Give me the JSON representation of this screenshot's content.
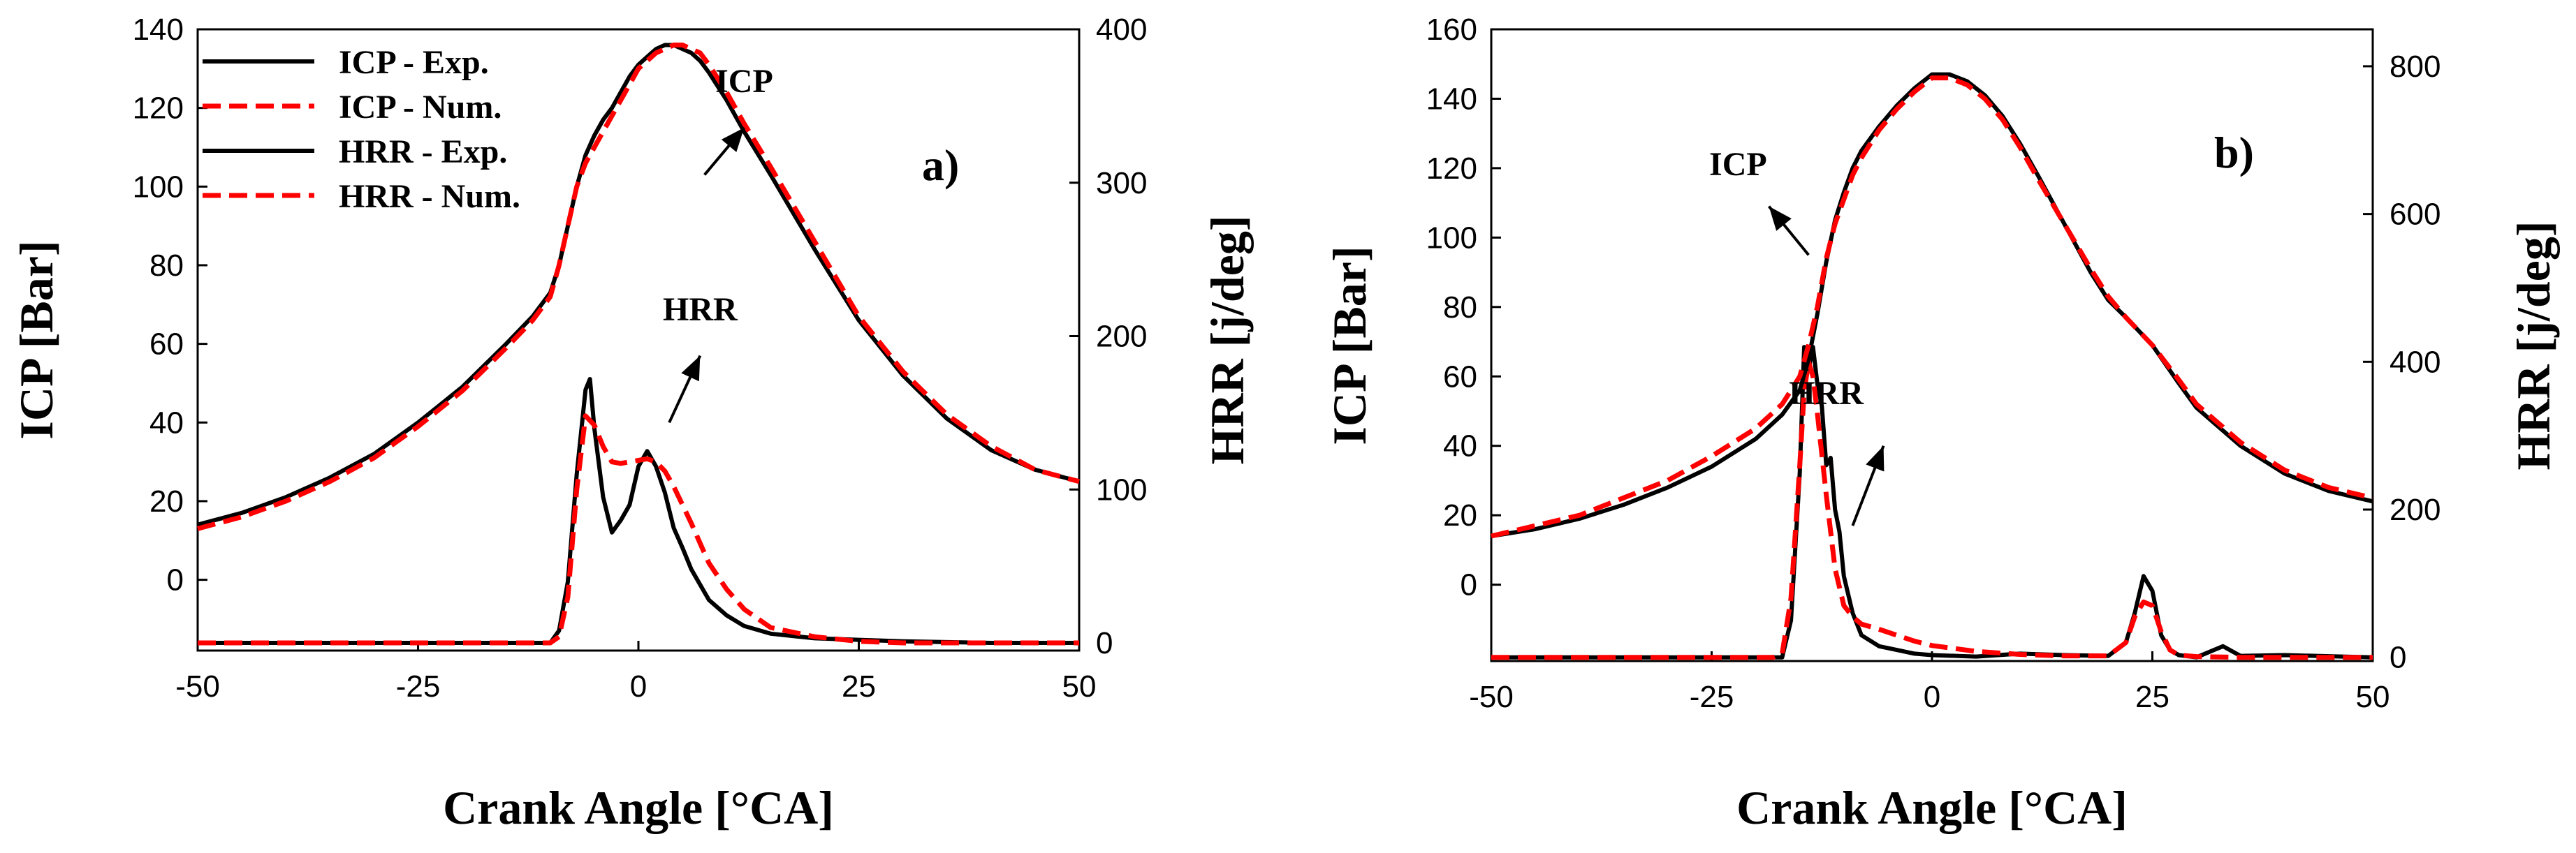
{
  "chart_data": [
    {
      "type": "line",
      "panel_label": "a)",
      "xlabel": "Crank Angle [°CA]",
      "ylabel_left": "ICP [Bar]",
      "ylabel_right": "HRR [j/deg]",
      "xlim": [
        -50,
        50
      ],
      "ylim_left": [
        -18,
        140
      ],
      "ylim_right": [
        -5,
        400
      ],
      "xticks": [
        -50,
        -25,
        0,
        25,
        50
      ],
      "yticks_left": [
        0,
        20,
        40,
        60,
        80,
        100,
        120,
        140
      ],
      "yticks_right": [
        0,
        100,
        200,
        300,
        400
      ],
      "grid": false,
      "legend": {
        "position": "top-left",
        "entries": [
          {
            "label": "ICP - Exp.",
            "color": "#000000",
            "style": "solid"
          },
          {
            "label": "ICP - Num.",
            "color": "#ff0000",
            "style": "dashed"
          },
          {
            "label": "HRR - Exp.",
            "color": "#000000",
            "style": "solid"
          },
          {
            "label": "HRR - Num.",
            "color": "#ff0000",
            "style": "dashed"
          }
        ]
      },
      "annotations": [
        {
          "text": "ICP",
          "x": 12,
          "y": 124,
          "arrow_from": [
            7.5,
            103
          ],
          "arrow_to": [
            12,
            115
          ]
        },
        {
          "text": "HRR",
          "x": 7,
          "y": 66,
          "arrow_from": [
            3.5,
            40
          ],
          "arrow_to": [
            7,
            57
          ]
        }
      ],
      "series": [
        {
          "name": "ICP - Exp.",
          "axis": "left",
          "color": "#000000",
          "style": "solid",
          "x": [
            -50,
            -45,
            -40,
            -35,
            -30,
            -25,
            -20,
            -15,
            -12,
            -10,
            -9,
            -8,
            -7,
            -6,
            -5,
            -4,
            -3,
            -2,
            -1,
            0,
            1,
            2,
            3,
            4,
            5,
            6,
            7,
            8,
            10,
            12,
            15,
            20,
            25,
            30,
            35,
            40,
            45,
            50
          ],
          "y": [
            14,
            17,
            21,
            26,
            32,
            40,
            49,
            60,
            67,
            73,
            80,
            90,
            100,
            108,
            113,
            117,
            120,
            124,
            128,
            131,
            133,
            135,
            136,
            136,
            135,
            134,
            132,
            129,
            122,
            114,
            103,
            84,
            66,
            52,
            41,
            33,
            28,
            25
          ]
        },
        {
          "name": "ICP - Num.",
          "axis": "left",
          "color": "#ff0000",
          "style": "dashed",
          "x": [
            -50,
            -45,
            -40,
            -35,
            -30,
            -25,
            -20,
            -15,
            -12,
            -10,
            -9,
            -8,
            -7,
            -6,
            -5,
            -4,
            -3,
            -2,
            -1,
            0,
            1,
            2,
            3,
            4,
            5,
            6,
            7,
            8,
            10,
            12,
            15,
            20,
            25,
            30,
            35,
            40,
            45,
            50
          ],
          "y": [
            13,
            16,
            20,
            25,
            31,
            39,
            48,
            59,
            66,
            72,
            80,
            90,
            100,
            106,
            110,
            114,
            118,
            122,
            126,
            130,
            132,
            134,
            135,
            136,
            136,
            135,
            134,
            131,
            124,
            116,
            105,
            86,
            67,
            53,
            42,
            34,
            28,
            25
          ]
        },
        {
          "name": "HRR - Exp.",
          "axis": "right",
          "color": "#000000",
          "style": "solid",
          "x": [
            -50,
            -20,
            -11,
            -10,
            -9,
            -8,
            -7,
            -6,
            -5.5,
            -5,
            -4,
            -3,
            -2,
            -1,
            0,
            1,
            2,
            3,
            4,
            5,
            6,
            7,
            8,
            10,
            12,
            15,
            20,
            25,
            30,
            40,
            50
          ],
          "y": [
            0,
            0,
            0,
            0,
            8,
            40,
            110,
            165,
            172,
            140,
            95,
            72,
            80,
            90,
            115,
            125,
            115,
            98,
            75,
            62,
            48,
            38,
            28,
            18,
            11,
            6,
            3,
            2,
            1,
            0,
            0
          ]
        },
        {
          "name": "HRR - Num.",
          "axis": "right",
          "color": "#ff0000",
          "style": "dashed",
          "x": [
            -50,
            -20,
            -10,
            -9,
            -8,
            -7,
            -6,
            -5,
            -4,
            -3,
            -2,
            -1,
            0,
            1,
            2,
            3,
            4,
            5,
            6,
            7,
            8,
            10,
            12,
            15,
            20,
            25,
            30,
            40,
            50
          ],
          "y": [
            0,
            0,
            0,
            4,
            30,
            100,
            148,
            142,
            128,
            118,
            117,
            118,
            119,
            120,
            118,
            112,
            102,
            90,
            78,
            65,
            52,
            35,
            22,
            10,
            4,
            1,
            0,
            0,
            0
          ]
        }
      ]
    },
    {
      "type": "line",
      "panel_label": "b)",
      "xlabel": "Crank Angle [°CA]",
      "ylabel_left": "ICP [Bar]",
      "ylabel_right": "HRR [j/deg]",
      "xlim": [
        -50,
        50
      ],
      "ylim_left": [
        -22,
        160
      ],
      "ylim_right": [
        -5,
        850
      ],
      "xticks": [
        -50,
        -25,
        0,
        25,
        50
      ],
      "yticks_left": [
        0,
        20,
        40,
        60,
        80,
        100,
        120,
        140,
        160
      ],
      "yticks_right": [
        0,
        200,
        400,
        600,
        800
      ],
      "grid": false,
      "annotations": [
        {
          "text": "ICP",
          "x": -22,
          "y": 118,
          "arrow_from": [
            -14,
            95
          ],
          "arrow_to": [
            -18.5,
            109
          ]
        },
        {
          "text": "HRR",
          "x": -12,
          "y": 52,
          "arrow_from": [
            -9,
            17
          ],
          "arrow_to": [
            -5.5,
            40
          ]
        }
      ],
      "series": [
        {
          "name": "ICP - Exp.",
          "axis": "left",
          "color": "#000000",
          "style": "solid",
          "x": [
            -50,
            -45,
            -40,
            -35,
            -30,
            -25,
            -20,
            -17,
            -15,
            -14,
            -13,
            -12,
            -11,
            -10,
            -9,
            -8,
            -6,
            -4,
            -2,
            0,
            2,
            4,
            6,
            8,
            10,
            12,
            15,
            18,
            20,
            22,
            25,
            28,
            30,
            35,
            40,
            45,
            50
          ],
          "y": [
            14,
            16,
            19,
            23,
            28,
            34,
            42,
            49,
            56,
            65,
            78,
            93,
            105,
            113,
            120,
            125,
            132,
            138,
            143,
            147,
            147,
            145,
            141,
            135,
            127,
            118,
            104,
            90,
            82,
            77,
            69,
            58,
            51,
            40,
            32,
            27,
            24
          ]
        },
        {
          "name": "ICP - Num.",
          "axis": "left",
          "color": "#ff0000",
          "style": "dashed",
          "x": [
            -50,
            -45,
            -40,
            -35,
            -30,
            -25,
            -20,
            -17,
            -15,
            -14,
            -13,
            -12,
            -11,
            -10,
            -9,
            -8,
            -6,
            -4,
            -2,
            0,
            2,
            4,
            6,
            8,
            10,
            12,
            15,
            18,
            20,
            22,
            25,
            28,
            30,
            35,
            40,
            45,
            50
          ],
          "y": [
            14,
            17,
            20,
            25,
            30,
            37,
            45,
            52,
            60,
            69,
            80,
            94,
            104,
            111,
            118,
            123,
            131,
            137,
            142,
            146,
            146,
            144,
            140,
            134,
            126,
            117,
            104,
            91,
            83,
            77,
            69,
            59,
            52,
            41,
            33,
            28,
            25
          ]
        },
        {
          "name": "HRR - Exp.",
          "axis": "right",
          "color": "#000000",
          "style": "solid",
          "x": [
            -50,
            -20,
            -17,
            -16,
            -15,
            -14.5,
            -14,
            -13.5,
            -13,
            -12.5,
            -12,
            -11.5,
            -11,
            -10.5,
            -10,
            -9,
            -8,
            -6,
            -4,
            -2,
            0,
            5,
            10,
            15,
            20,
            22,
            23,
            24,
            25,
            26,
            27,
            28,
            30,
            33,
            35,
            40,
            50
          ],
          "y": [
            0,
            0,
            0,
            50,
            250,
            420,
            390,
            420,
            370,
            340,
            260,
            270,
            200,
            170,
            110,
            60,
            30,
            15,
            10,
            5,
            3,
            1,
            5,
            3,
            2,
            20,
            60,
            110,
            90,
            30,
            10,
            3,
            0,
            15,
            2,
            3,
            0
          ]
        },
        {
          "name": "HRR - Num.",
          "axis": "right",
          "color": "#ff0000",
          "style": "dashed",
          "x": [
            -50,
            -20,
            -18,
            -17,
            -16,
            -15,
            -14.5,
            -14,
            -13.5,
            -13,
            -12,
            -11,
            -10,
            -9,
            -8,
            -6,
            -4,
            -2,
            0,
            5,
            10,
            15,
            20,
            22,
            23,
            24,
            25,
            26,
            27,
            28,
            30,
            35,
            40,
            50
          ],
          "y": [
            0,
            0,
            0,
            5,
            80,
            260,
            360,
            400,
            380,
            330,
            220,
            120,
            70,
            55,
            45,
            38,
            30,
            22,
            16,
            8,
            4,
            2,
            2,
            20,
            55,
            75,
            70,
            35,
            10,
            3,
            1,
            0,
            0,
            0
          ]
        }
      ]
    }
  ]
}
